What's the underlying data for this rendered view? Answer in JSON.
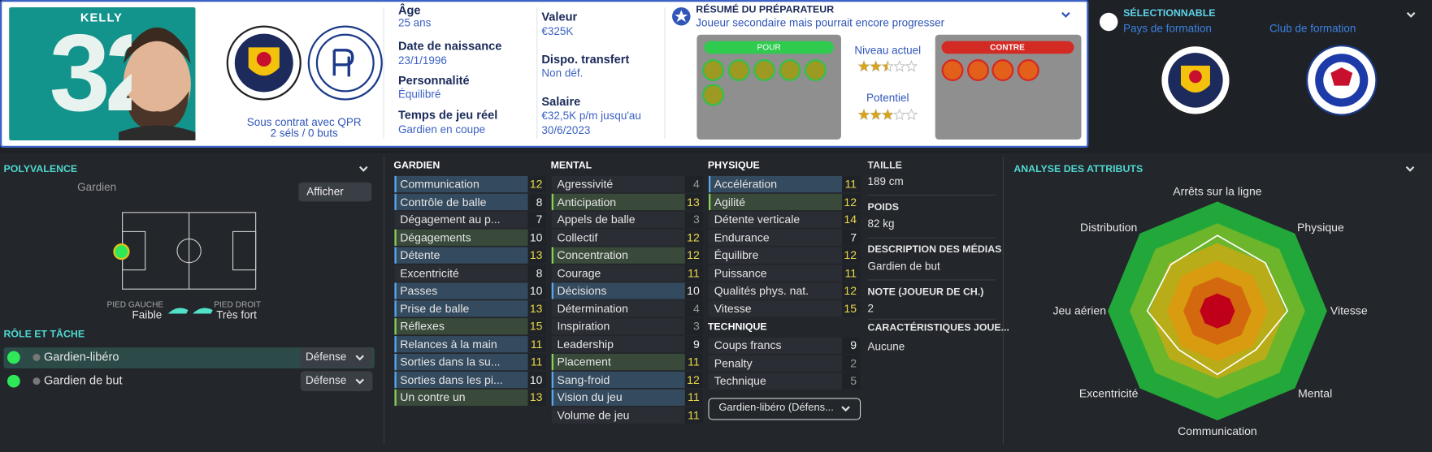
{
  "header": {
    "number": "32",
    "name": "KELLY",
    "contract": "Sous contrat avec QPR",
    "caps": "2 séls / 0 buts"
  },
  "info": [
    {
      "label": "Âge",
      "value": "25 ans"
    },
    {
      "label": "Date de naissance",
      "value": "23/1/1996"
    },
    {
      "label": "Personnalité",
      "value": "Équilibré"
    },
    {
      "label": "Temps de jeu réel",
      "value": "Gardien en coupe"
    }
  ],
  "info2": [
    {
      "label": "Valeur",
      "value": "€325K"
    },
    {
      "label": "Dispo. transfert",
      "value": "Non déf."
    },
    {
      "label": "Salaire",
      "value": "€32,5K p/m jusqu'au 30/6/2023"
    }
  ],
  "report": {
    "title": "RÉSUMÉ DU PRÉPARATEUR",
    "text": "Joueur secondaire mais pourrait encore progresser",
    "pour": "POUR",
    "contre": "CONTRE",
    "current_label": "Niveau actuel",
    "current_stars": 2.5,
    "potential_label": "Potentiel",
    "potential_stars": 3
  },
  "selection": {
    "title": "SÉLECTIONNABLE",
    "country_label": "Pays de formation",
    "club_label": "Club de formation"
  },
  "polyvalence": {
    "title": "POLYVALENCE",
    "position": "Gardien",
    "button": "Afficher",
    "left_foot_label": "PIED GAUCHE",
    "left_foot": "Faible",
    "right_foot_label": "PIED DROIT",
    "right_foot": "Très fort"
  },
  "roles": {
    "title": "RÔLE ET TÂCHE",
    "items": [
      {
        "name": "Gardien-libéro",
        "duty": "Défense"
      },
      {
        "name": "Gardien de but",
        "duty": "Défense"
      }
    ]
  },
  "attributes": {
    "groups": [
      {
        "title": "GARDIEN",
        "rows": [
          {
            "name": "Communication",
            "value": 12,
            "color": "blue"
          },
          {
            "name": "Contrôle de balle",
            "value": 8,
            "color": "blue"
          },
          {
            "name": "Dégagement au p...",
            "value": 7
          },
          {
            "name": "Dégagements",
            "value": 10,
            "color": "green"
          },
          {
            "name": "Détente",
            "value": 13,
            "color": "blue"
          },
          {
            "name": "Excentricité",
            "value": 8
          },
          {
            "name": "Passes",
            "value": 10,
            "color": "blue"
          },
          {
            "name": "Prise de balle",
            "value": 13,
            "color": "blue"
          },
          {
            "name": "Réflexes",
            "value": 15,
            "color": "green"
          },
          {
            "name": "Relances à la main",
            "value": 11,
            "color": "blue"
          },
          {
            "name": "Sorties dans la su...",
            "value": 11,
            "color": "blue"
          },
          {
            "name": "Sorties dans les pi...",
            "value": 10,
            "color": "blue"
          },
          {
            "name": "Un contre un",
            "value": 13,
            "color": "green"
          }
        ]
      },
      {
        "title": "MENTAL",
        "rows": [
          {
            "name": "Agressivité",
            "value": 4
          },
          {
            "name": "Anticipation",
            "value": 13,
            "color": "green"
          },
          {
            "name": "Appels de balle",
            "value": 3
          },
          {
            "name": "Collectif",
            "value": 12
          },
          {
            "name": "Concentration",
            "value": 12,
            "color": "green"
          },
          {
            "name": "Courage",
            "value": 11
          },
          {
            "name": "Décisions",
            "value": 10,
            "color": "blue"
          },
          {
            "name": "Détermination",
            "value": 4
          },
          {
            "name": "Inspiration",
            "value": 3
          },
          {
            "name": "Leadership",
            "value": 9
          },
          {
            "name": "Placement",
            "value": 11,
            "color": "green"
          },
          {
            "name": "Sang-froid",
            "value": 12,
            "color": "blue"
          },
          {
            "name": "Vision du jeu",
            "value": 11,
            "color": "blue"
          },
          {
            "name": "Volume de jeu",
            "value": 11
          }
        ]
      },
      {
        "title": "PHYSIQUE",
        "rows": [
          {
            "name": "Accélération",
            "value": 11,
            "color": "blue"
          },
          {
            "name": "Agilité",
            "value": 12,
            "color": "green"
          },
          {
            "name": "Détente verticale",
            "value": 14
          },
          {
            "name": "Endurance",
            "value": 7
          },
          {
            "name": "Équilibre",
            "value": 12
          },
          {
            "name": "Puissance",
            "value": 11
          },
          {
            "name": "Qualités phys. nat.",
            "value": 12
          },
          {
            "name": "Vitesse",
            "value": 15
          }
        ]
      },
      {
        "title": "TECHNIQUE",
        "rows": [
          {
            "name": "Coups francs",
            "value": 9
          },
          {
            "name": "Penalty",
            "value": 2
          },
          {
            "name": "Technique",
            "value": 5
          }
        ]
      }
    ],
    "role_select": "Gardien-libéro (Défens..."
  },
  "details": [
    {
      "label": "TAILLE",
      "value": "189 cm"
    },
    {
      "label": "POIDS",
      "value": "82 kg"
    },
    {
      "label": "DESCRIPTION DES MÉDIAS",
      "value": "Gardien de but"
    },
    {
      "label": "NOTE (JOUEUR DE CH.)",
      "value": "2"
    },
    {
      "label": "CARACTÉRISTIQUES JOUE...",
      "value": "Aucune"
    }
  ],
  "analysis": {
    "title": "ANALYSE DES ATTRIBUTS",
    "axes": [
      "Arrêts sur la ligne",
      "Physique",
      "Vitesse",
      "Mental",
      "Communication",
      "Excentricité",
      "Jeu aérien",
      "Distribution"
    ]
  }
}
